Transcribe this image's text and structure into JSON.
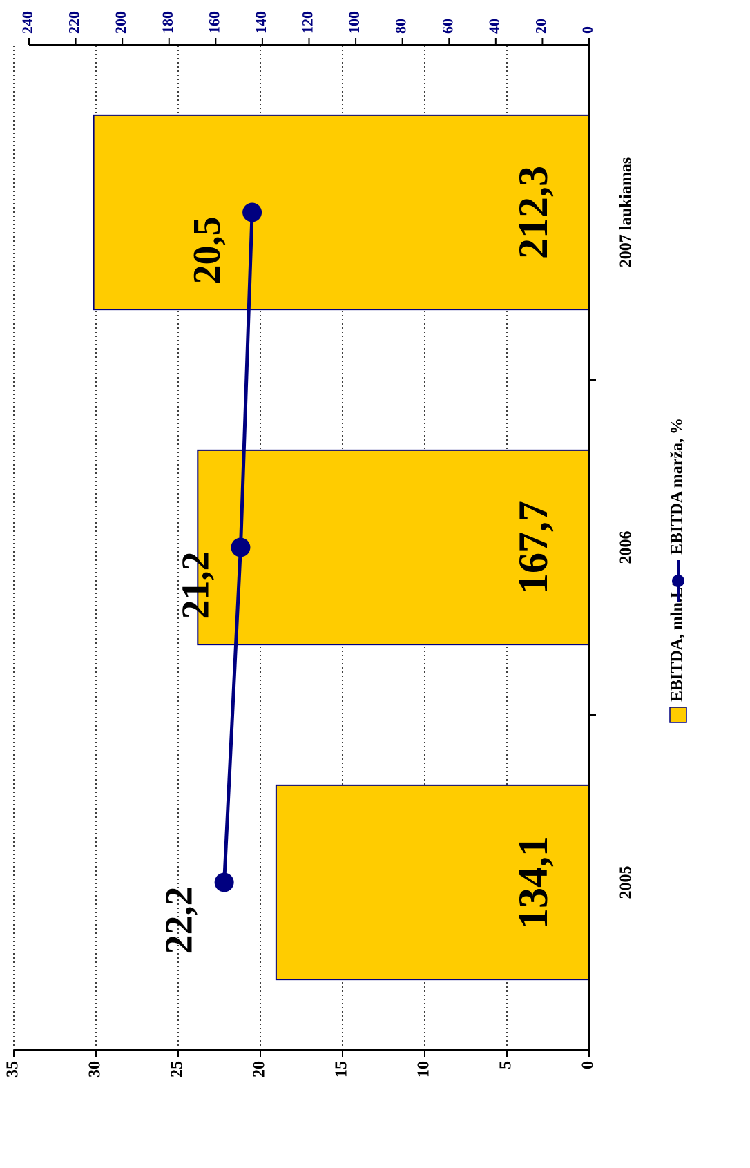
{
  "chart_data": {
    "type": "bar",
    "categories": [
      "2005",
      "2006",
      "2007 laukiamas"
    ],
    "series": [
      {
        "name": "EBITDA, mln.Lt",
        "type": "bar",
        "axis": "y2",
        "color": "#FFCC00",
        "values": [
          134.1,
          167.7,
          212.3
        ],
        "value_labels": [
          "134,1",
          "167,7",
          "212,3"
        ]
      },
      {
        "name": "EBITDA marža, %",
        "type": "line",
        "axis": "y",
        "color": "#000080",
        "values": [
          22.2,
          21.2,
          20.5
        ],
        "value_labels": [
          "22,2",
          "21,2",
          "20,5"
        ]
      }
    ],
    "ylim": [
      0,
      35
    ],
    "yticks": [
      0,
      5,
      10,
      15,
      20,
      25,
      30,
      35
    ],
    "y2lim": [
      0,
      240
    ],
    "y2ticks": [
      0,
      20,
      40,
      60,
      80,
      100,
      120,
      140,
      160,
      180,
      200,
      220,
      240
    ],
    "grid": true,
    "legend": "bottom"
  }
}
